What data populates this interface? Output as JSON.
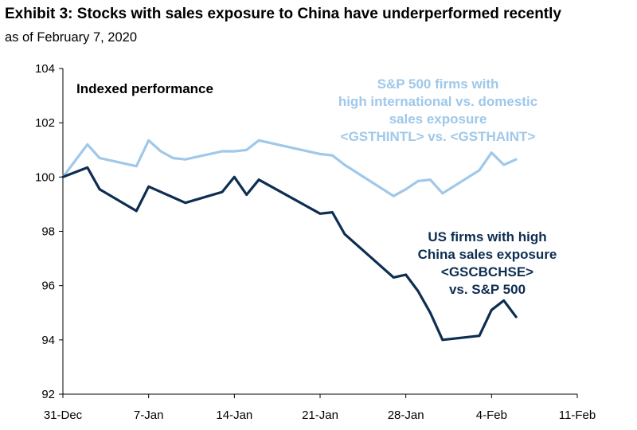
{
  "header": {
    "title": "Exhibit 3: Stocks with sales exposure to China have underperformed recently",
    "subtitle": "as of February 7, 2020"
  },
  "colors": {
    "intl_series": "#9fc8ea",
    "china_series": "#0d2e52",
    "axis": "#000000"
  },
  "chart_data": {
    "type": "line",
    "title": "Exhibit 3: Stocks with sales exposure to China have underperformed recently",
    "subtitle": "as of February 7, 2020",
    "panel_label": "Indexed performance",
    "xlabel": "",
    "ylabel": "",
    "xlim": [
      0,
      42
    ],
    "ylim": [
      92,
      104
    ],
    "y_ticks": [
      92,
      94,
      96,
      98,
      100,
      102,
      104
    ],
    "x_ticks": [
      {
        "day": 0,
        "label": "31-Dec"
      },
      {
        "day": 7,
        "label": "7-Jan"
      },
      {
        "day": 14,
        "label": "14-Jan"
      },
      {
        "day": 21,
        "label": "21-Jan"
      },
      {
        "day": 28,
        "label": "28-Jan"
      },
      {
        "day": 35,
        "label": "4-Feb"
      },
      {
        "day": 42,
        "label": "11-Feb"
      }
    ],
    "grid": false,
    "series": [
      {
        "name": "S&P 500 firms with high international vs. domestic sales exposure <GSTHINTL> vs. <GSTHAINT>",
        "label_lines": [
          "S&P 500 firms with",
          "high international vs. domestic",
          "sales exposure",
          "<GSTHINTL> vs. <GSTHAINT>"
        ],
        "x": [
          0,
          2,
          3,
          6,
          7,
          8,
          9,
          10,
          13,
          14,
          15,
          16,
          21,
          22,
          23,
          27,
          28,
          29,
          30,
          31,
          34,
          35,
          36,
          37
        ],
        "values": [
          100.0,
          101.2,
          100.7,
          100.4,
          101.35,
          100.95,
          100.7,
          100.65,
          100.95,
          100.95,
          101.0,
          101.35,
          100.85,
          100.8,
          100.45,
          99.3,
          99.55,
          99.85,
          99.9,
          99.4,
          100.25,
          100.9,
          100.45,
          100.65
        ]
      },
      {
        "name": "US firms with high China sales exposure <GSCBCHSE> vs. S&P 500",
        "label_lines": [
          "US firms with high",
          "China sales exposure",
          "<GSCBCHSE>",
          "vs. S&P 500"
        ],
        "x": [
          0,
          2,
          3,
          6,
          7,
          8,
          9,
          10,
          13,
          14,
          15,
          16,
          21,
          22,
          23,
          27,
          28,
          29,
          30,
          31,
          34,
          35,
          36,
          37
        ],
        "values": [
          100.0,
          100.35,
          99.55,
          98.75,
          99.65,
          99.45,
          99.25,
          99.05,
          99.45,
          100.0,
          99.35,
          99.9,
          98.65,
          98.7,
          97.9,
          96.3,
          96.4,
          95.8,
          95.0,
          94.0,
          94.15,
          95.1,
          95.45,
          94.85
        ]
      }
    ]
  }
}
